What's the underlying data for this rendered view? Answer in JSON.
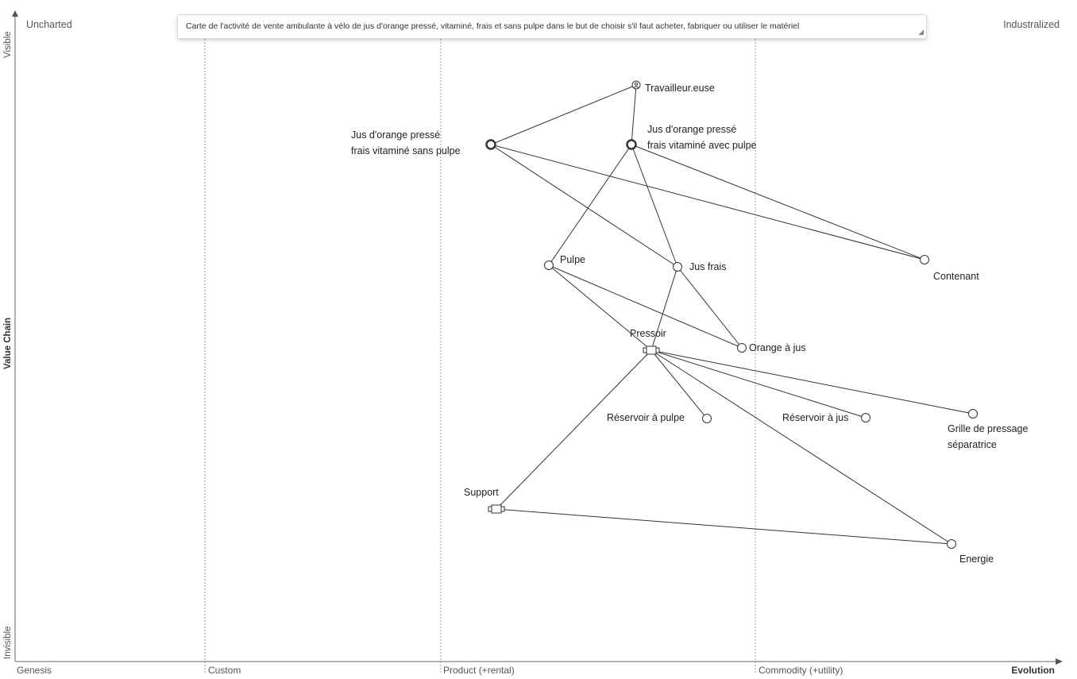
{
  "map_title": "Carte de l'activité de vente ambulante à vélo de jus d'orange pressé, vitaminé, frais et sans pulpe dans le but de choisir s'il faut acheter, fabriquer ou utiliser le matériel",
  "corners": {
    "top_left": "Uncharted",
    "top_right": "Industralized"
  },
  "x_axis": {
    "stages": [
      "Genesis",
      "Custom",
      "Product (+rental)",
      "Commodity (+utility)"
    ],
    "title": "Evolution"
  },
  "y_axis": {
    "top": "Visible",
    "title": "Value Chain",
    "bottom": "Invisible"
  },
  "components": [
    {
      "id": "travailleur",
      "name": "Travailleur.euse",
      "type": "user"
    },
    {
      "id": "jus_sans",
      "name_lines": [
        "Jus d'orange pressé",
        "frais vitaminé sans pulpe"
      ],
      "type": "anchor"
    },
    {
      "id": "jus_avec",
      "name_lines": [
        "Jus d'orange pressé",
        "frais vitaminé avec pulpe"
      ],
      "type": "anchor"
    },
    {
      "id": "pulpe",
      "name": "Pulpe",
      "type": "component"
    },
    {
      "id": "jus_frais",
      "name": "Jus frais",
      "type": "component"
    },
    {
      "id": "contenant",
      "name": "Contenant",
      "type": "component"
    },
    {
      "id": "orange",
      "name": "Orange à jus",
      "type": "component"
    },
    {
      "id": "pressoir",
      "name": "Pressoir",
      "type": "market"
    },
    {
      "id": "res_pulpe",
      "name": "Réservoir à pulpe",
      "type": "component"
    },
    {
      "id": "res_jus",
      "name": "Réservoir à jus",
      "type": "component"
    },
    {
      "id": "grille",
      "name_lines": [
        "Grille de pressage",
        "séparatrice"
      ],
      "type": "component"
    },
    {
      "id": "support",
      "name": "Support",
      "type": "market"
    },
    {
      "id": "energie",
      "name": "Energie",
      "type": "component"
    }
  ],
  "links": [
    [
      "travailleur",
      "jus_sans"
    ],
    [
      "travailleur",
      "jus_avec"
    ],
    [
      "jus_sans",
      "jus_frais"
    ],
    [
      "jus_sans",
      "contenant"
    ],
    [
      "jus_avec",
      "pulpe"
    ],
    [
      "jus_avec",
      "jus_frais"
    ],
    [
      "jus_avec",
      "contenant"
    ],
    [
      "pulpe",
      "orange"
    ],
    [
      "pulpe",
      "pressoir"
    ],
    [
      "jus_frais",
      "orange"
    ],
    [
      "jus_frais",
      "pressoir"
    ],
    [
      "pressoir",
      "res_pulpe"
    ],
    [
      "pressoir",
      "res_jus"
    ],
    [
      "pressoir",
      "grille"
    ],
    [
      "pressoir",
      "energie"
    ],
    [
      "pressoir",
      "support"
    ],
    [
      "support",
      "energie"
    ]
  ]
}
